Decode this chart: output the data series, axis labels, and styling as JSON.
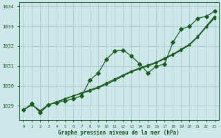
{
  "title": "Graphe pression niveau de la mer (hPa)",
  "bg_color": "#cce8e8",
  "grid_color": "#aacccc",
  "line_color": "#1a5c20",
  "marker_color": "#1a5c20",
  "xlim": [
    -0.5,
    23.5
  ],
  "ylim": [
    1028.3,
    1034.2
  ],
  "yticks": [
    1029,
    1030,
    1031,
    1032,
    1033,
    1034
  ],
  "xticks": [
    0,
    1,
    2,
    3,
    4,
    5,
    6,
    7,
    8,
    9,
    10,
    11,
    12,
    13,
    14,
    15,
    16,
    17,
    18,
    19,
    20,
    21,
    22,
    23
  ],
  "series_main": [
    1028.8,
    1029.1,
    1028.65,
    1029.05,
    1029.15,
    1029.25,
    1029.35,
    1029.5,
    1030.3,
    1030.65,
    1031.35,
    1031.75,
    1031.8,
    1031.5,
    1031.1,
    1030.65,
    1031.0,
    1031.1,
    1032.2,
    1032.85,
    1033.0,
    1033.4,
    1033.5,
    1033.75
  ],
  "series_linear1": [
    1028.8,
    1029.05,
    1028.75,
    1029.05,
    1029.2,
    1029.35,
    1029.5,
    1029.65,
    1029.8,
    1029.95,
    1030.15,
    1030.35,
    1030.55,
    1030.75,
    1030.9,
    1031.05,
    1031.2,
    1031.4,
    1031.6,
    1031.85,
    1032.1,
    1032.5,
    1033.0,
    1033.5
  ],
  "series_linear2": [
    1028.8,
    1029.05,
    1028.75,
    1029.05,
    1029.2,
    1029.35,
    1029.5,
    1029.65,
    1029.78,
    1029.92,
    1030.1,
    1030.3,
    1030.52,
    1030.72,
    1030.88,
    1031.02,
    1031.18,
    1031.38,
    1031.58,
    1031.82,
    1032.08,
    1032.48,
    1032.98,
    1033.45
  ],
  "series_linear3": [
    1028.8,
    1029.05,
    1028.75,
    1029.05,
    1029.2,
    1029.35,
    1029.5,
    1029.62,
    1029.75,
    1029.9,
    1030.08,
    1030.28,
    1030.5,
    1030.7,
    1030.86,
    1031.0,
    1031.16,
    1031.36,
    1031.56,
    1031.8,
    1032.06,
    1032.46,
    1032.95,
    1033.4
  ]
}
